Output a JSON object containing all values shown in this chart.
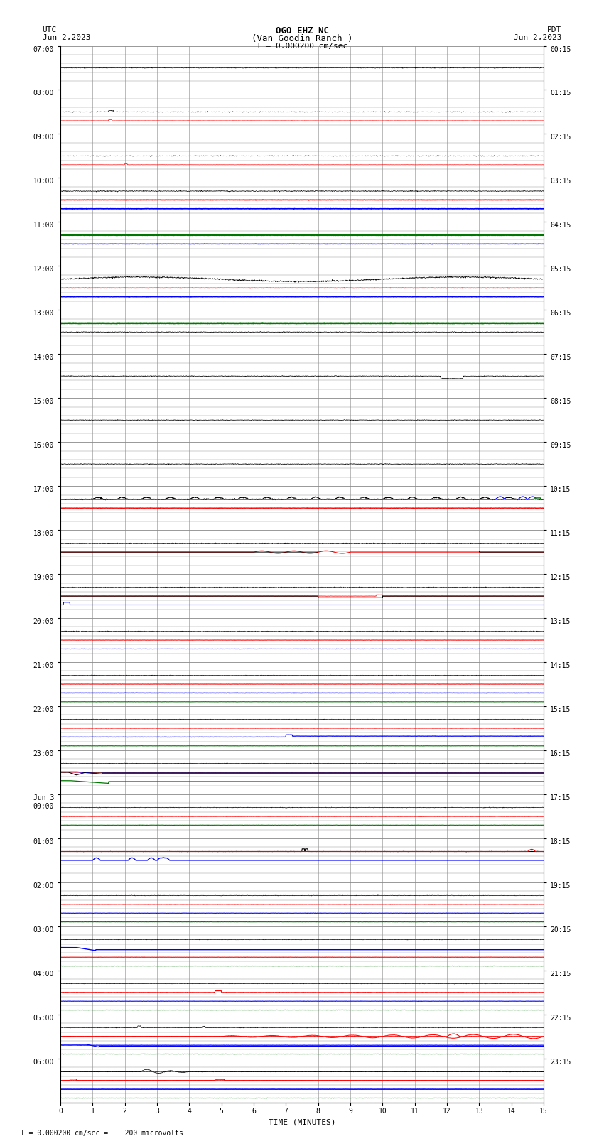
{
  "title_line1": "OGO EHZ NC",
  "title_line2": "(Van Goodin Ranch )",
  "title_line3": "I = 0.000200 cm/sec",
  "left_label_top": "UTC",
  "left_label_date": "Jun 2,2023",
  "right_label_top": "PDT",
  "right_label_date": "Jun 2,2023",
  "xlabel": "TIME (MINUTES)",
  "footnote": "  I = 0.000200 cm/sec =    200 microvolts",
  "utc_labels": [
    "07:00",
    "08:00",
    "09:00",
    "10:00",
    "11:00",
    "12:00",
    "13:00",
    "14:00",
    "15:00",
    "16:00",
    "17:00",
    "18:00",
    "19:00",
    "20:00",
    "21:00",
    "22:00",
    "23:00",
    "Jun 3\n00:00",
    "01:00",
    "02:00",
    "03:00",
    "04:00",
    "05:00",
    "06:00"
  ],
  "pdt_labels": [
    "00:15",
    "01:15",
    "02:15",
    "03:15",
    "04:15",
    "05:15",
    "06:15",
    "07:15",
    "08:15",
    "09:15",
    "10:15",
    "11:15",
    "12:15",
    "13:15",
    "14:15",
    "15:15",
    "16:15",
    "17:15",
    "18:15",
    "19:15",
    "20:15",
    "21:15",
    "22:15",
    "23:15"
  ],
  "n_rows": 24,
  "sub_rows": 5,
  "x_min": 0,
  "x_max": 15,
  "x_ticks": [
    0,
    1,
    2,
    3,
    4,
    5,
    6,
    7,
    8,
    9,
    10,
    11,
    12,
    13,
    14,
    15
  ],
  "bg_color": "#ffffff",
  "grid_color": "#888888",
  "col_black": "#000000",
  "col_red": "#ff0000",
  "col_blue": "#0000ff",
  "col_green": "#007700"
}
